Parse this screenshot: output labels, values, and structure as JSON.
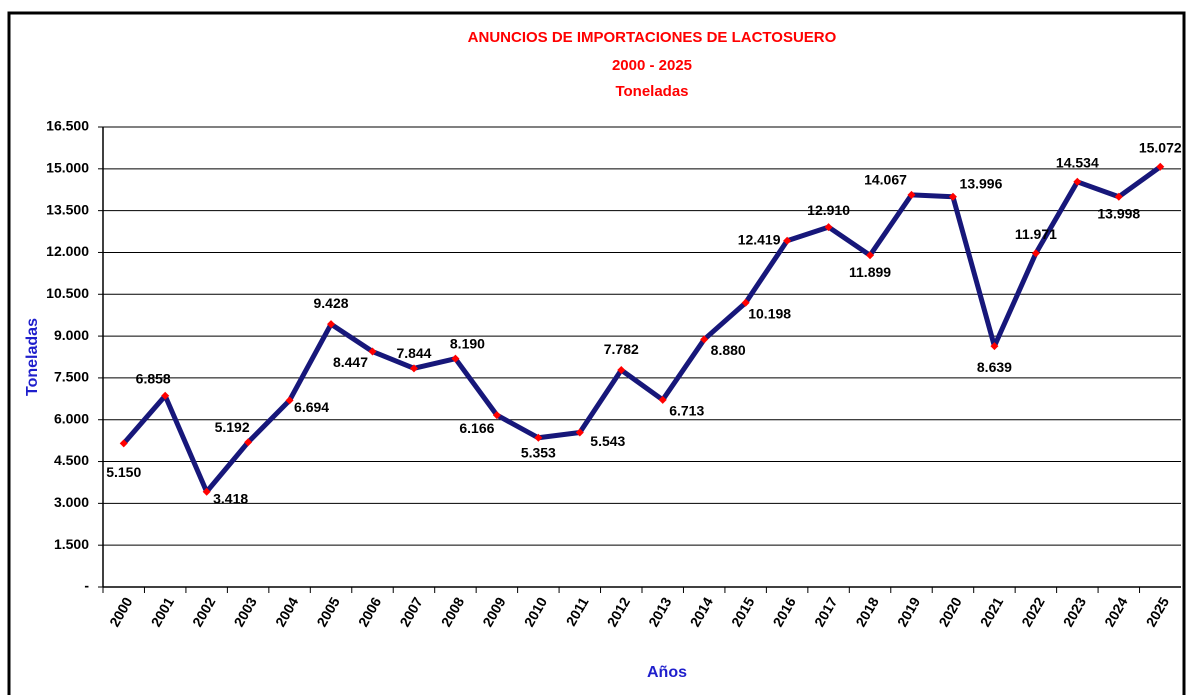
{
  "chart_data": {
    "type": "line",
    "title": "ANUNCIOS DE IMPORTACIONES DE LACTOSUERO",
    "subtitle": [
      "2000 - 2025",
      "Toneladas"
    ],
    "x_label": "Años",
    "y_label": "Toneladas",
    "categories": [
      "2000",
      "2001",
      "2002",
      "2003",
      "2004",
      "2005",
      "2006",
      "2007",
      "2008",
      "2009",
      "2010",
      "2011",
      "2012",
      "2013",
      "2014",
      "2015",
      "2016",
      "2017",
      "2018",
      "2019",
      "2020",
      "2021",
      "2022",
      "2023",
      "2024",
      "2025"
    ],
    "series": [
      {
        "name": "Toneladas",
        "color": "#17177a",
        "marker_color": "#ff0000",
        "values": [
          5150,
          6858,
          3418,
          5192,
          6694,
          9428,
          8447,
          7844,
          8190,
          6166,
          5353,
          5543,
          7782,
          6713,
          8880,
          10198,
          12419,
          12910,
          11899,
          14067,
          13996,
          8639,
          11971,
          14534,
          13998,
          15072
        ],
        "value_labels": [
          "5.150",
          "6.858",
          "3.418",
          "5.192",
          "6.694",
          "9.428",
          "8.447",
          "7.844",
          "8.190",
          "6.166",
          "5.353",
          "5.543",
          "7.782",
          "6.713",
          "8.880",
          "10.198",
          "12.419",
          "12.910",
          "11.899",
          "14.067",
          "13.996",
          "8.639",
          "11.971",
          "14.534",
          "13.998",
          "15.072"
        ]
      }
    ],
    "ylim": [
      0,
      16500
    ],
    "yticks": [
      {
        "value": 0,
        "label": "-"
      },
      {
        "value": 1500,
        "label": "1.500"
      },
      {
        "value": 3000,
        "label": "3.000"
      },
      {
        "value": 4500,
        "label": "4.500"
      },
      {
        "value": 6000,
        "label": "6.000"
      },
      {
        "value": 7500,
        "label": "7.500"
      },
      {
        "value": 9000,
        "label": "9.000"
      },
      {
        "value": 10500,
        "label": "10.500"
      },
      {
        "value": 12000,
        "label": "12.000"
      },
      {
        "value": 13500,
        "label": "13.500"
      },
      {
        "value": 15000,
        "label": "15.000"
      },
      {
        "value": 16500,
        "label": "16.500"
      }
    ],
    "grid": true
  }
}
